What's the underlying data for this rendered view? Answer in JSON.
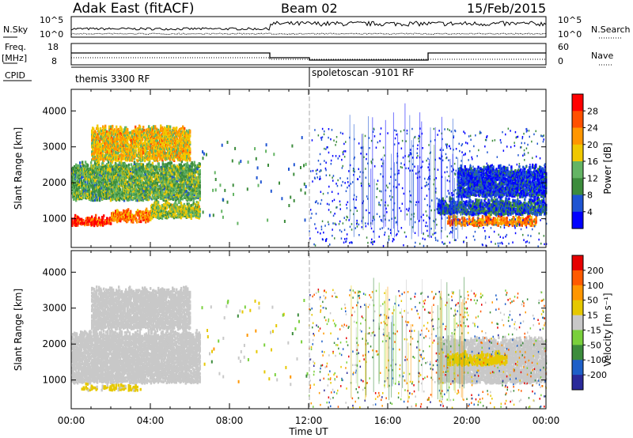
{
  "header": {
    "title": "Adak East (fitACF)",
    "beam": "Beam 02",
    "date": "15/Feb/2015"
  },
  "side_labels": {
    "nsky": "N.Sky",
    "nsearch": "N.Search",
    "freq": "Freq.",
    "freq_unit": "[MHz]",
    "nave": "Nave",
    "cpid": "CPID"
  },
  "cpid_programs": [
    {
      "name": "themis 3300 RF"
    },
    {
      "name": "spoletoscan -9101 RF"
    }
  ],
  "panel_ticks": {
    "nsky_left": [
      "10^5",
      "10^0"
    ],
    "nsky_right": [
      "10^5",
      "10^0"
    ],
    "freq_left": [
      "18",
      "8"
    ],
    "nave_right": [
      "60",
      "0"
    ]
  },
  "colors": {
    "power_scale": [
      "#0000ff",
      "#1e54d2",
      "#3c8c3c",
      "#64b464",
      "#f0c800",
      "#ff9600",
      "#ff5000",
      "#ff0000"
    ],
    "velocity_scale": [
      "#2a2a9a",
      "#1e5fc8",
      "#3c8c3c",
      "#7ad03c",
      "#c8c8c8",
      "#e6c800",
      "#ff9600",
      "#ff5a00",
      "#e60000"
    ],
    "line": "#000000",
    "gridline": "#888888"
  },
  "chart_data": [
    {
      "type": "heatmap",
      "title": "Power",
      "xlabel": "Time UT",
      "ylabel": "Slant Range [km]",
      "x_ticks": [
        "00:00",
        "04:00",
        "08:00",
        "12:00",
        "16:00",
        "20:00",
        "00:00"
      ],
      "y_ticks": [
        "1000",
        "2000",
        "3000",
        "4000"
      ],
      "ylim": [
        200,
        4600
      ],
      "colorbar": {
        "label": "Power [dB]",
        "ticks": [
          "28",
          "24",
          "20",
          "16",
          "12",
          "8",
          "4"
        ],
        "range": [
          0,
          30
        ]
      },
      "bands": [
        {
          "t0": 0.0,
          "t1": 2.0,
          "r0": 800,
          "r1": 1100,
          "value": 26
        },
        {
          "t0": 2.0,
          "t1": 4.0,
          "r0": 900,
          "r1": 1300,
          "value": 22
        },
        {
          "t0": 4.0,
          "t1": 6.5,
          "r0": 1000,
          "r1": 1500,
          "value": 14
        },
        {
          "t0": 0.0,
          "t1": 6.5,
          "r0": 1500,
          "r1": 2600,
          "value": 12
        },
        {
          "t0": 1.0,
          "t1": 6.0,
          "r0": 2600,
          "r1": 3600,
          "value": 18
        },
        {
          "t0": 19.0,
          "t1": 23.5,
          "r0": 800,
          "r1": 1100,
          "value": 22
        },
        {
          "t0": 18.5,
          "t1": 24.0,
          "r0": 1100,
          "r1": 1600,
          "value": 6
        },
        {
          "t0": 19.5,
          "t1": 24.0,
          "r0": 1600,
          "r1": 2500,
          "value": 4
        }
      ]
    },
    {
      "type": "heatmap",
      "title": "Velocity",
      "xlabel": "Time UT",
      "ylabel": "Slant Range [km]",
      "x_ticks": [
        "00:00",
        "04:00",
        "08:00",
        "12:00",
        "16:00",
        "20:00",
        "00:00"
      ],
      "y_ticks": [
        "1000",
        "2000",
        "3000",
        "4000"
      ],
      "ylim": [
        200,
        4600
      ],
      "colorbar": {
        "label": "Velocity [m s⁻¹]",
        "ticks": [
          "200",
          "100",
          "50",
          "15",
          "-15",
          "-50",
          "-100",
          "-200"
        ],
        "range": [
          -250,
          250
        ]
      },
      "bands": [
        {
          "t0": 0.0,
          "t1": 6.5,
          "r0": 900,
          "r1": 2400,
          "value": 0
        },
        {
          "t0": 1.0,
          "t1": 6.0,
          "r0": 2400,
          "r1": 3600,
          "value": 0
        },
        {
          "t0": 0.5,
          "t1": 3.5,
          "r0": 700,
          "r1": 900,
          "value": 40
        },
        {
          "t0": 18.5,
          "t1": 24.0,
          "r0": 900,
          "r1": 2200,
          "value": 0
        },
        {
          "t0": 19.0,
          "t1": 22.0,
          "r0": 1400,
          "r1": 1800,
          "value": 60
        }
      ]
    }
  ]
}
